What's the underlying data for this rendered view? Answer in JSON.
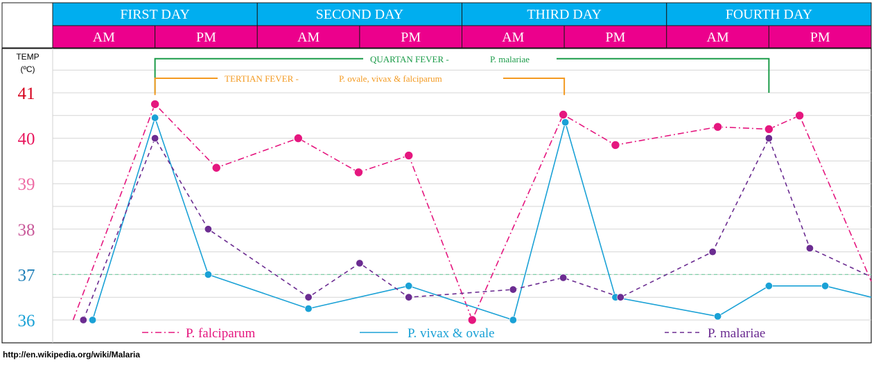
{
  "chart_data": {
    "type": "line",
    "days": [
      "FIRST DAY",
      "SECOND DAY",
      "THIRD DAY",
      "FOURTH DAY"
    ],
    "periods": [
      "AM",
      "PM",
      "AM",
      "PM",
      "AM",
      "PM",
      "AM",
      "PM"
    ],
    "y_title_line1": "TEMP",
    "y_title_line2": "(ºC)",
    "y_ticks": [
      "41",
      "40",
      "39",
      "38",
      "37",
      "36"
    ],
    "y_tick_values": [
      41,
      40,
      39,
      38,
      37,
      36
    ],
    "ylim": [
      35.9,
      41.98
    ],
    "xlim": [
      0,
      8
    ],
    "grid": true,
    "normal_temperature": 37,
    "series": [
      {
        "name": "P. falciparum",
        "color": "#e5177f",
        "dash": "dash-dot",
        "markers": true,
        "points": [
          [
            0.2,
            36.0
          ],
          [
            1.0,
            40.75
          ],
          [
            1.6,
            39.35
          ],
          [
            2.4,
            40.0
          ],
          [
            2.99,
            39.25
          ],
          [
            3.48,
            39.62
          ],
          [
            4.1,
            36.0
          ],
          [
            4.99,
            40.52
          ],
          [
            5.5,
            39.85
          ],
          [
            6.5,
            40.25
          ],
          [
            7.0,
            40.2
          ],
          [
            7.3,
            40.5
          ],
          [
            8.0,
            36.85
          ]
        ]
      },
      {
        "name": "P. vivax & ovale",
        "color": "#1aa1d6",
        "dash": "solid",
        "markers": true,
        "points": [
          [
            0.39,
            36.0
          ],
          [
            1.0,
            40.45
          ],
          [
            1.52,
            37.0
          ],
          [
            2.5,
            36.25
          ],
          [
            3.48,
            36.75
          ],
          [
            4.5,
            36.0
          ],
          [
            5.01,
            40.35
          ],
          [
            5.5,
            36.5
          ],
          [
            6.5,
            36.08
          ],
          [
            7.0,
            36.75
          ],
          [
            7.55,
            36.75
          ],
          [
            8.0,
            36.5
          ]
        ]
      },
      {
        "name": "P. malariae",
        "color": "#6b2c91",
        "dash": "dashed",
        "markers": true,
        "points": [
          [
            0.3,
            36.0
          ],
          [
            1.0,
            40.0
          ],
          [
            1.52,
            38.0
          ],
          [
            2.5,
            36.5
          ],
          [
            3.0,
            37.25
          ],
          [
            3.48,
            36.5
          ],
          [
            4.5,
            36.67
          ],
          [
            4.99,
            36.93
          ],
          [
            5.55,
            36.5
          ],
          [
            6.45,
            37.5
          ],
          [
            7.0,
            40.0
          ],
          [
            7.4,
            37.58
          ],
          [
            8.0,
            36.95
          ]
        ]
      }
    ],
    "annotations": [
      {
        "label": "QUARTAN FEVER -",
        "label2": "P. malariae",
        "color": "#1a9b48",
        "from": 1.0,
        "to": 7.0,
        "level": 41.75,
        "drop": 41.0
      },
      {
        "label": "TERTIAN FEVER -",
        "label2": "P. ovale, vivax & falciparum",
        "color": "#f39a21",
        "from": 1.0,
        "to": 5.0,
        "level": 41.32,
        "drop": 40.95
      }
    ]
  },
  "source": "http://en.wikipedia.org/wiki/Malaria"
}
